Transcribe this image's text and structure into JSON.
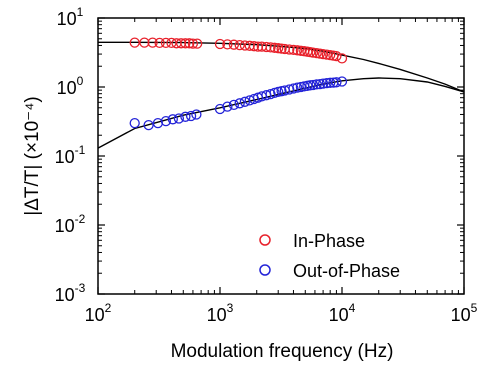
{
  "chart_data": {
    "type": "scatter",
    "xscale": "log",
    "yscale": "log",
    "xlim": [
      100,
      100000
    ],
    "ylim": [
      0.001,
      10
    ],
    "xlabel": "Modulation frequency (Hz)",
    "ylabel": "|ΔT/T| (×10⁻⁴)",
    "x_ticks": [
      {
        "base": "10",
        "exp": "2",
        "value": 100
      },
      {
        "base": "10",
        "exp": "3",
        "value": 1000
      },
      {
        "base": "10",
        "exp": "4",
        "value": 10000
      },
      {
        "base": "10",
        "exp": "5",
        "value": 100000
      }
    ],
    "y_ticks": [
      {
        "base": "10",
        "exp": "-3",
        "value": 0.001
      },
      {
        "base": "10",
        "exp": "-2",
        "value": 0.01
      },
      {
        "base": "10",
        "exp": "-1",
        "value": 0.1
      },
      {
        "base": "10",
        "exp": "0",
        "value": 1
      },
      {
        "base": "10",
        "exp": "1",
        "value": 10
      }
    ],
    "grid": false,
    "legend_position": "bottom-right",
    "series": [
      {
        "name": "In-Phase",
        "color": "#e8212b",
        "marker": "open-circle",
        "x": [
          200,
          240,
          280,
          320,
          360,
          400,
          440,
          480,
          520,
          560,
          600,
          650,
          1000,
          1150,
          1300,
          1450,
          1600,
          1750,
          1900,
          2050,
          2200,
          2400,
          2600,
          2800,
          3000,
          3200,
          3400,
          3700,
          4000,
          4300,
          4600,
          4900,
          5200,
          5500,
          5800,
          6200,
          6600,
          7000,
          7500,
          8000,
          8500,
          9000,
          10000
        ],
        "y": [
          4.4,
          4.4,
          4.4,
          4.35,
          4.35,
          4.35,
          4.3,
          4.3,
          4.3,
          4.3,
          4.25,
          4.25,
          4.2,
          4.15,
          4.1,
          4.05,
          4.0,
          3.95,
          3.9,
          3.85,
          3.85,
          3.8,
          3.75,
          3.7,
          3.65,
          3.6,
          3.55,
          3.5,
          3.45,
          3.4,
          3.35,
          3.3,
          3.25,
          3.2,
          3.15,
          3.1,
          3.05,
          3.0,
          2.95,
          2.9,
          2.85,
          2.8,
          2.6
        ]
      },
      {
        "name": "Out-of-Phase",
        "color": "#2424d8",
        "marker": "open-circle",
        "x": [
          200,
          260,
          310,
          360,
          410,
          460,
          520,
          580,
          640,
          1000,
          1150,
          1300,
          1450,
          1600,
          1750,
          1900,
          2050,
          2200,
          2400,
          2600,
          2800,
          3000,
          3200,
          3400,
          3700,
          4000,
          4300,
          4600,
          4900,
          5200,
          5500,
          5800,
          6200,
          6600,
          7000,
          7500,
          8000,
          8500,
          9000,
          10000
        ],
        "y": [
          0.3,
          0.28,
          0.3,
          0.32,
          0.34,
          0.35,
          0.37,
          0.38,
          0.4,
          0.48,
          0.52,
          0.55,
          0.58,
          0.61,
          0.64,
          0.67,
          0.7,
          0.73,
          0.76,
          0.79,
          0.82,
          0.85,
          0.87,
          0.89,
          0.92,
          0.95,
          0.98,
          1.0,
          1.02,
          1.04,
          1.06,
          1.07,
          1.09,
          1.1,
          1.12,
          1.14,
          1.15,
          1.16,
          1.17,
          1.2
        ]
      },
      {
        "role": "fit",
        "color": "#000000",
        "x": [
          100,
          200,
          500,
          1000,
          2000,
          3000,
          5000,
          7000,
          10000,
          15000,
          20000,
          30000,
          50000,
          70000,
          100000
        ],
        "y": [
          4.45,
          4.45,
          4.4,
          4.3,
          4.1,
          3.9,
          3.6,
          3.3,
          2.9,
          2.5,
          2.2,
          1.8,
          1.35,
          1.1,
          0.85
        ]
      },
      {
        "role": "fit",
        "color": "#000000",
        "x": [
          100,
          200,
          500,
          1000,
          2000,
          3000,
          5000,
          7000,
          10000,
          15000,
          20000,
          30000,
          50000,
          70000,
          100000
        ],
        "y": [
          0.13,
          0.25,
          0.39,
          0.5,
          0.66,
          0.78,
          0.96,
          1.1,
          1.23,
          1.32,
          1.35,
          1.32,
          1.18,
          1.02,
          0.85
        ]
      }
    ]
  }
}
